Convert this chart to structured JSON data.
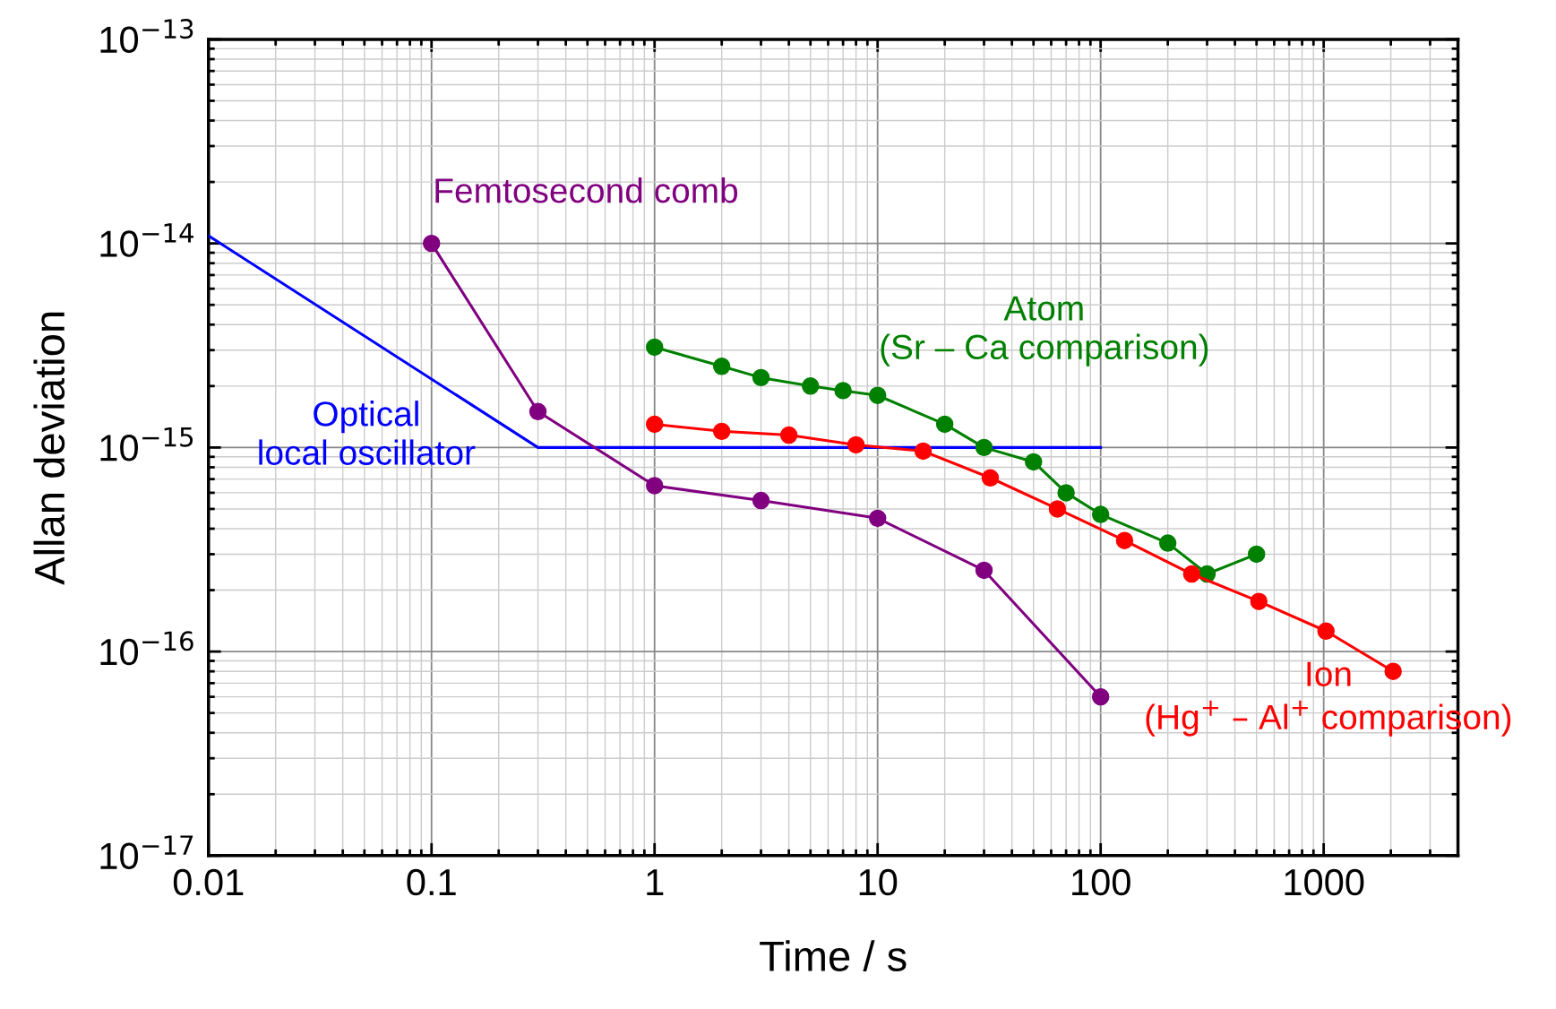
{
  "chart_data": {
    "type": "line",
    "xlabel": "Time / s",
    "ylabel": "Allan deviation",
    "log": "xy",
    "grid": true,
    "marker": "circle",
    "line_style": "solid",
    "xlim": [
      0.01,
      4000
    ],
    "xticks": [
      0.01,
      0.1,
      1,
      10,
      100,
      1000
    ],
    "ylim": [
      1e-17,
      1e-13
    ],
    "yticks": [
      {
        "value": 1e-17,
        "label": "10$^{−17}$"
      },
      {
        "value": 1e-16,
        "label": "10$^{−16}$"
      },
      {
        "value": 1e-15,
        "label": "10$^{−15}$"
      },
      {
        "value": 1e-14,
        "label": "10$^{−14}$"
      },
      {
        "value": 1e-13,
        "label": "10$^{−13}$"
      }
    ],
    "series": [
      {
        "name": "Optical\nlocal oscillator",
        "color": "#0000ff",
        "marker": "none",
        "x": [
          0.01,
          0.3,
          100
        ],
        "values": [
          1.09e-14,
          1e-15,
          1e-15
        ]
      },
      {
        "name": "Femtosecond comb",
        "color": "#800080",
        "x": [
          0.1,
          0.3,
          1,
          3,
          10,
          30,
          100
        ],
        "values": [
          1e-14,
          1.5e-15,
          6.5e-16,
          5.5e-16,
          4.5e-16,
          2.5e-16,
          6e-17
        ]
      },
      {
        "name": "Atom\n(Sr – Ca comparison)",
        "color": "#008000",
        "x": [
          1,
          2,
          3,
          5,
          7,
          10,
          20,
          30,
          50,
          70,
          100,
          200,
          300,
          500
        ],
        "values": [
          3.1e-15,
          2.5e-15,
          2.2e-15,
          2e-15,
          1.9e-15,
          1.8e-15,
          1.3e-15,
          1e-15,
          8.5e-16,
          6e-16,
          4.7e-16,
          3.4e-16,
          2.4e-16,
          3e-16
        ]
      },
      {
        "name": "Ion\n(Hg$^{+}$ – Al$^{+}$ comparison)",
        "color": "#ff0000",
        "x": [
          1,
          2,
          4,
          8,
          16,
          32,
          64,
          128,
          256,
          512,
          1024,
          2048
        ],
        "values": [
          1.3e-15,
          1.2e-15,
          1.15e-15,
          1.03e-15,
          9.6e-16,
          7.1e-16,
          5e-16,
          3.5e-16,
          2.4e-16,
          1.76e-16,
          1.26e-16,
          8e-17
        ]
      }
    ]
  }
}
